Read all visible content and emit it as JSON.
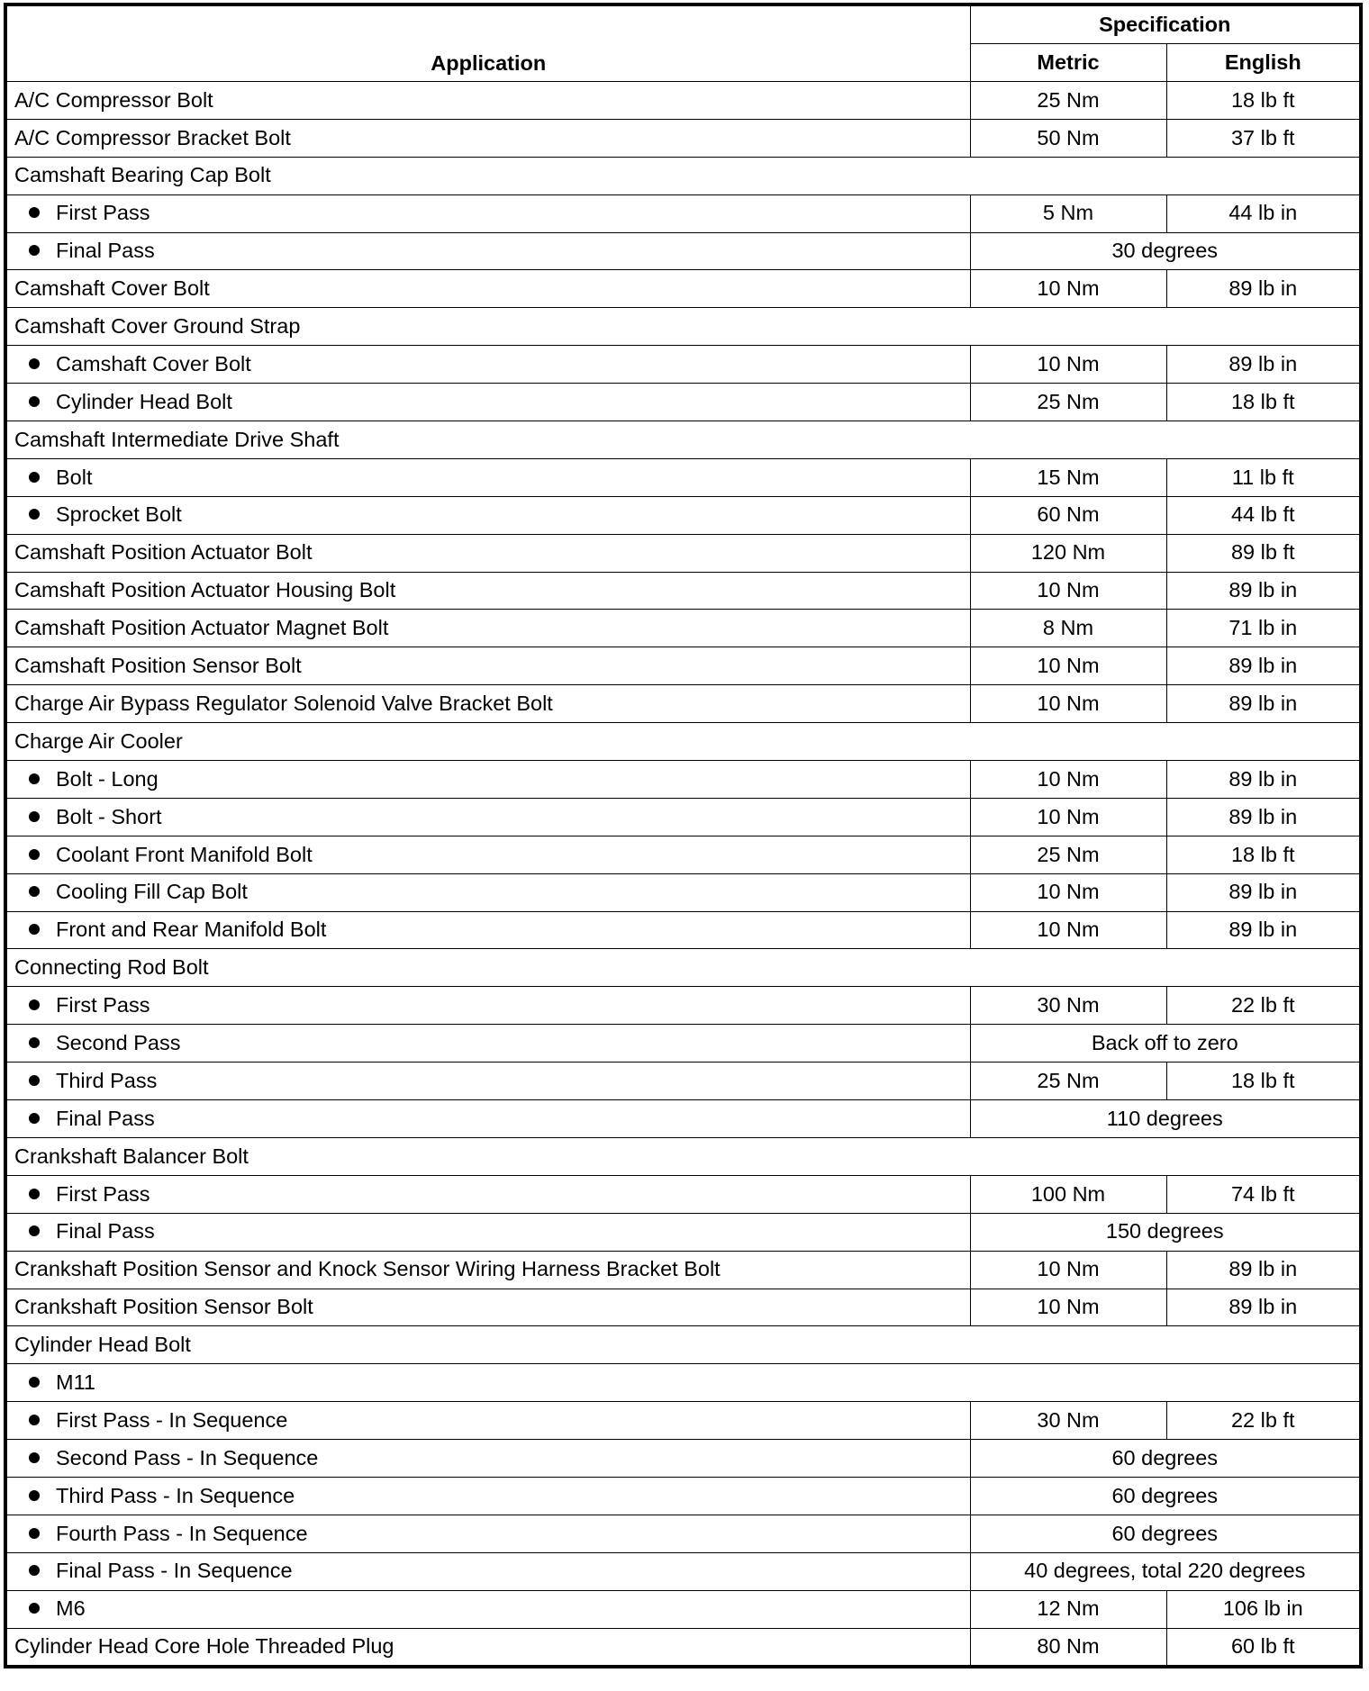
{
  "header": {
    "application": "Application",
    "specification": "Specification",
    "metric": "Metric",
    "english": "English"
  },
  "rows": [
    {
      "app": "A/C Compressor Bolt",
      "metric": "25 Nm",
      "english": "18 lb ft"
    },
    {
      "app": "A/C Compressor Bracket Bolt",
      "metric": "50 Nm",
      "english": "37 lb ft"
    },
    {
      "app": "Camshaft Bearing Cap Bolt",
      "group": true
    },
    {
      "app": "First Pass",
      "bullet": true,
      "metric": "5 Nm",
      "english": "44 lb in"
    },
    {
      "app": "Final Pass",
      "bullet": true,
      "span": "30 degrees"
    },
    {
      "app": "Camshaft Cover Bolt",
      "metric": "10 Nm",
      "english": "89 lb in"
    },
    {
      "app": "Camshaft Cover Ground Strap",
      "group": true
    },
    {
      "app": "Camshaft Cover Bolt",
      "bullet": true,
      "metric": "10 Nm",
      "english": "89 lb in"
    },
    {
      "app": "Cylinder Head Bolt",
      "bullet": true,
      "metric": "25 Nm",
      "english": "18 lb ft"
    },
    {
      "app": "Camshaft Intermediate Drive Shaft",
      "group": true
    },
    {
      "app": "Bolt",
      "bullet": true,
      "metric": "15 Nm",
      "english": "11 lb ft"
    },
    {
      "app": "Sprocket Bolt",
      "bullet": true,
      "metric": "60 Nm",
      "english": "44 lb ft"
    },
    {
      "app": "Camshaft Position Actuator Bolt",
      "metric": "120 Nm",
      "english": "89 lb ft"
    },
    {
      "app": "Camshaft Position Actuator Housing Bolt",
      "metric": "10 Nm",
      "english": "89 lb in"
    },
    {
      "app": "Camshaft Position Actuator Magnet Bolt",
      "metric": "8 Nm",
      "english": "71 lb in"
    },
    {
      "app": "Camshaft Position Sensor Bolt",
      "metric": "10 Nm",
      "english": "89 lb in"
    },
    {
      "app": "Charge Air Bypass Regulator Solenoid Valve Bracket Bolt",
      "metric": "10 Nm",
      "english": "89 lb in"
    },
    {
      "app": "Charge Air Cooler",
      "group": true
    },
    {
      "app": "Bolt - Long",
      "bullet": true,
      "metric": "10 Nm",
      "english": "89 lb in"
    },
    {
      "app": "Bolt - Short",
      "bullet": true,
      "metric": "10 Nm",
      "english": "89 lb in"
    },
    {
      "app": "Coolant Front Manifold Bolt",
      "bullet": true,
      "metric": "25 Nm",
      "english": "18 lb ft"
    },
    {
      "app": "Cooling Fill Cap Bolt",
      "bullet": true,
      "metric": "10 Nm",
      "english": "89 lb in"
    },
    {
      "app": "Front and Rear Manifold Bolt",
      "bullet": true,
      "metric": "10 Nm",
      "english": "89 lb in"
    },
    {
      "app": "Connecting Rod Bolt",
      "group": true
    },
    {
      "app": "First Pass",
      "bullet": true,
      "metric": "30 Nm",
      "english": "22 lb ft"
    },
    {
      "app": "Second Pass",
      "bullet": true,
      "span": "Back off to zero"
    },
    {
      "app": "Third Pass",
      "bullet": true,
      "metric": "25 Nm",
      "english": "18 lb ft"
    },
    {
      "app": "Final Pass",
      "bullet": true,
      "span": "110 degrees"
    },
    {
      "app": "Crankshaft Balancer Bolt",
      "group": true
    },
    {
      "app": "First Pass",
      "bullet": true,
      "metric": "100 Nm",
      "english": "74 lb ft"
    },
    {
      "app": "Final Pass",
      "bullet": true,
      "span": "150 degrees"
    },
    {
      "app": "Crankshaft Position Sensor and Knock Sensor Wiring Harness Bracket Bolt",
      "metric": "10 Nm",
      "english": "89 lb in"
    },
    {
      "app": "Crankshaft Position Sensor Bolt",
      "metric": "10 Nm",
      "english": "89 lb in"
    },
    {
      "app": "Cylinder Head Bolt",
      "group": true
    },
    {
      "app": "M11",
      "bullet": true,
      "group": true
    },
    {
      "app": "First Pass - In Sequence",
      "bullet": true,
      "metric": "30 Nm",
      "english": "22 lb ft"
    },
    {
      "app": "Second Pass - In Sequence",
      "bullet": true,
      "span": "60 degrees"
    },
    {
      "app": "Third Pass - In Sequence",
      "bullet": true,
      "span": "60 degrees"
    },
    {
      "app": "Fourth Pass - In Sequence",
      "bullet": true,
      "span": "60 degrees"
    },
    {
      "app": "Final Pass - In Sequence",
      "bullet": true,
      "span": "40 degrees, total 220 degrees"
    },
    {
      "app": "M6",
      "bullet": true,
      "metric": "12 Nm",
      "english": "106 lb in"
    },
    {
      "app": "Cylinder Head Core Hole Threaded Plug",
      "metric": "80 Nm",
      "english": "60 lb ft"
    }
  ]
}
